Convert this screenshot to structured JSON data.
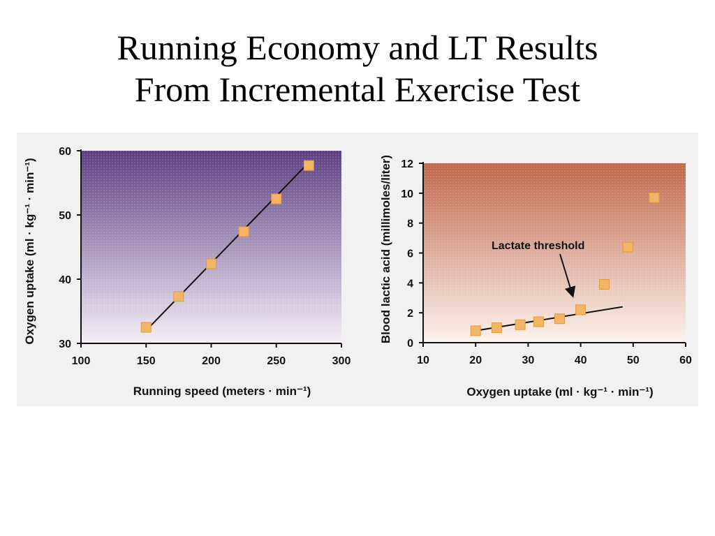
{
  "title": {
    "line1": "Running Economy and LT Results",
    "line2": "From Incremental Exercise Test"
  },
  "colors": {
    "left_panel_top": "#5c3f82",
    "left_panel_bottom": "#f4eef6",
    "right_panel_top": "#c0674a",
    "right_panel_bottom": "#fbf3ee",
    "marker": "#f0b566",
    "line": "#111111"
  },
  "chart_data": [
    {
      "type": "scatter",
      "title": "",
      "xlabel": "Running speed (meters · min⁻¹)",
      "ylabel": "Oxygen uptake (ml · kg⁻¹ · min⁻¹)",
      "xlim": [
        100,
        300
      ],
      "ylim": [
        30,
        60
      ],
      "xticks": [
        "100",
        "150",
        "200",
        "250",
        "300"
      ],
      "yticks": [
        "30",
        "40",
        "50",
        "60"
      ],
      "grid": false,
      "series": [
        {
          "x": [
            150,
            175,
            200,
            225,
            250,
            275
          ],
          "y": [
            32.5,
            37.3,
            42.4,
            47.4,
            52.5,
            57.7
          ]
        }
      ],
      "fit_line": {
        "x": [
          150,
          275
        ],
        "y": [
          32,
          58.2
        ]
      }
    },
    {
      "type": "scatter",
      "title": "",
      "xlabel": "Oxygen uptake (ml · kg⁻¹ · min⁻¹)",
      "ylabel": "Blood lactic acid (millimoles/liter)",
      "xlim": [
        10,
        60
      ],
      "ylim": [
        0,
        12
      ],
      "xticks": [
        "10",
        "20",
        "30",
        "40",
        "50",
        "60"
      ],
      "yticks": [
        "0",
        "2",
        "4",
        "6",
        "8",
        "10",
        "12"
      ],
      "grid": false,
      "series": [
        {
          "x": [
            20,
            24,
            28.5,
            32,
            36,
            40,
            44.5,
            49,
            54
          ],
          "y": [
            0.8,
            1.0,
            1.2,
            1.4,
            1.6,
            2.2,
            3.9,
            6.4,
            9.7
          ]
        }
      ],
      "fit_line": {
        "x": [
          20,
          48
        ],
        "y": [
          0.8,
          2.4
        ]
      },
      "annotation": {
        "text": "Lactate threshold",
        "arrow_to": {
          "x": 38.8,
          "y": 2.9
        }
      }
    }
  ]
}
